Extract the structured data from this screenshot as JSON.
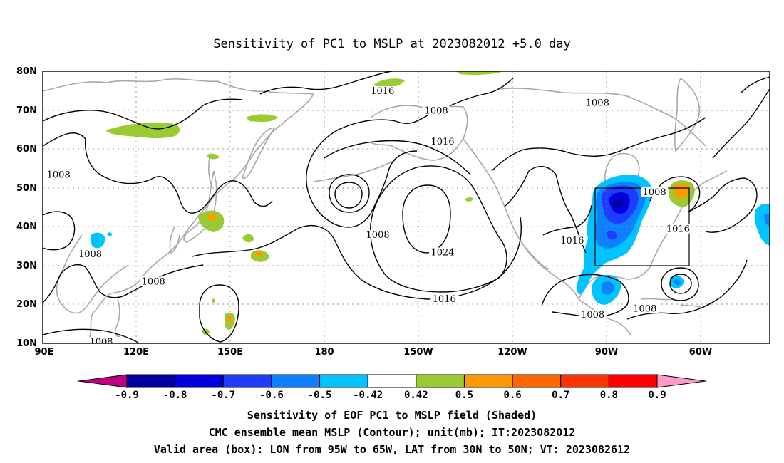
{
  "title": "Sensitivity of PC1 to MSLP at 2023082012 +5.0 day",
  "lat_ticks": [
    "80N",
    "70N",
    "60N",
    "50N",
    "40N",
    "30N",
    "20N",
    "10N"
  ],
  "lon_ticks": [
    "90E",
    "120E",
    "150E",
    "180",
    "150W",
    "120W",
    "90W",
    "60W"
  ],
  "contour_labels": [
    {
      "text": "1016",
      "lon": 197.5,
      "lat": 74.5
    },
    {
      "text": "1008",
      "lon": 214.5,
      "lat": 69.5
    },
    {
      "text": "1016",
      "lon": 216.5,
      "lat": 61.5
    },
    {
      "text": "1008",
      "lon": 265.5,
      "lat": 71.5
    },
    {
      "text": "1008",
      "lon": 95.0,
      "lat": 53.0
    },
    {
      "text": "1008",
      "lon": 196.0,
      "lat": 37.5
    },
    {
      "text": "1024",
      "lon": 216.5,
      "lat": 33.0
    },
    {
      "text": "1016",
      "lon": 217.0,
      "lat": 21.0
    },
    {
      "text": "1016",
      "lon": 257.5,
      "lat": 36.0
    },
    {
      "text": "1008",
      "lon": 105.0,
      "lat": 32.5
    },
    {
      "text": "1008",
      "lon": 125.0,
      "lat": 25.5
    },
    {
      "text": "1008",
      "lon": 108.5,
      "lat": 10.0
    },
    {
      "text": "1008",
      "lon": 264.0,
      "lat": 17.0
    },
    {
      "text": "1008",
      "lon": 283.5,
      "lat": 48.5
    },
    {
      "text": "1016",
      "lon": 291.0,
      "lat": 39.0
    },
    {
      "text": "1008",
      "lon": 280.5,
      "lat": 18.5
    }
  ],
  "valid_box": {
    "lon_min": 265,
    "lon_max": 295,
    "lat_min": 30,
    "lat_max": 50
  },
  "colorbar": {
    "colors": [
      "#c00080",
      "#0000a0",
      "#0000dd",
      "#1e3cff",
      "#0c80ff",
      "#00c4ff",
      "#ffffff",
      "#99cc33",
      "#ff9900",
      "#ff6600",
      "#ff3300",
      "#ff0000",
      "#ff99cc"
    ],
    "labels": [
      "-0.9",
      "-0.8",
      "-0.7",
      "-0.6",
      "-0.5",
      "-0.42",
      "0.42",
      "0.5",
      "0.6",
      "0.7",
      "0.8",
      "0.9"
    ]
  },
  "caption": {
    "line1": "Sensitivity of EOF PC1 to MSLP field (Shaded)",
    "line2": "CMC ensemble mean MSLP (Contour); unit(mb); IT:2023082012",
    "line3": "Valid area (box): LON from 95W to 65W, LAT from 30N to 50N; VT: 2023082612"
  }
}
